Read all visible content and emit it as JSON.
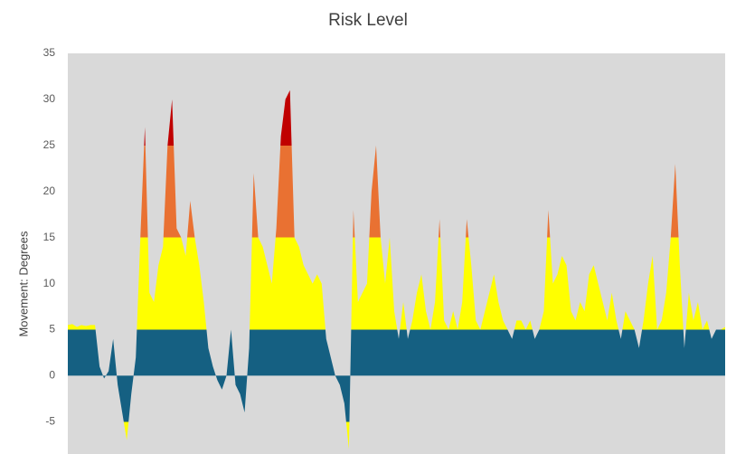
{
  "chart_data": {
    "type": "area",
    "title": "Risk Level",
    "y_label": "Movement: Degrees",
    "values": [
      5.5,
      5.6,
      5.3,
      5.5,
      5.4,
      5.5,
      5.5,
      1,
      -0.3,
      0.5,
      4,
      -1,
      -4,
      -7,
      -2,
      2,
      15,
      27,
      9,
      8,
      12,
      14,
      25,
      30,
      16,
      15,
      13,
      19,
      15,
      12,
      8,
      3,
      1,
      -0.5,
      -1.5,
      0,
      5,
      -1,
      -2,
      -4,
      3,
      22,
      15,
      14,
      12,
      10,
      16,
      26,
      30,
      31,
      15,
      14,
      12,
      11,
      10,
      11,
      10,
      4,
      2,
      0,
      -1,
      -3,
      -8,
      18,
      8,
      9,
      10,
      20,
      25,
      15,
      10,
      15,
      7,
      4,
      8,
      4,
      6,
      9,
      11,
      7,
      5,
      8,
      17,
      6,
      5,
      7,
      5,
      8,
      17,
      12,
      6,
      5,
      7,
      9,
      11,
      8,
      6,
      5,
      4,
      6,
      6,
      5,
      6,
      4,
      5,
      7,
      18,
      10,
      11,
      13,
      12,
      7,
      6,
      8,
      7,
      11,
      12,
      10,
      8,
      6,
      9,
      6,
      4,
      7,
      6,
      5,
      3,
      6,
      10,
      13,
      5,
      6,
      9,
      15,
      23,
      12,
      3,
      9,
      6,
      8,
      5,
      6,
      4,
      5,
      5,
      5.3
    ],
    "band_edges": [
      25,
      15,
      5,
      -5
    ],
    "band_colors": [
      "#c00000",
      "#e97132",
      "#ffff00",
      "#156082",
      "#ffff00"
    ],
    "background": "#d9d9d9",
    "ylim": [
      -8.5,
      35
    ],
    "yticks": [
      -5,
      0,
      5,
      10,
      15,
      20,
      25,
      30,
      35
    ],
    "grid": false
  }
}
